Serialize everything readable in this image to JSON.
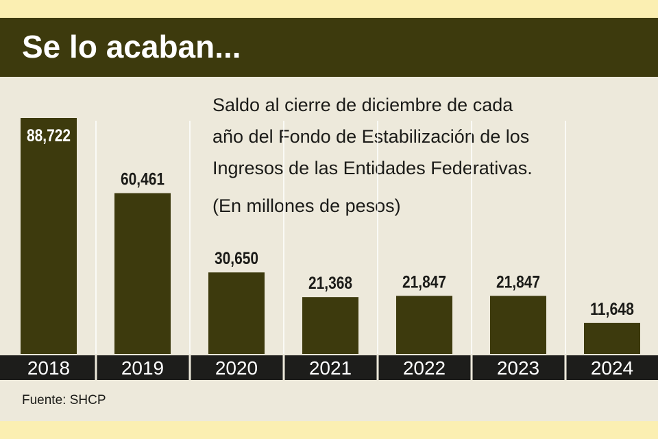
{
  "title": "Se lo acaban...",
  "subtitle_lines": [
    "Saldo al cierre de diciembre de cada",
    "año del Fondo de Estabilización de los",
    "Ingresos de las Entidades Federativas."
  ],
  "units": "(En millones de pesos)",
  "source": "Fuente: SHCP",
  "colors": {
    "bar": "#3d3a0d",
    "year_bar": "#1d1d1b",
    "background": "#ede9db",
    "outer": "#fbefb2"
  },
  "chart_data": {
    "type": "bar",
    "categories": [
      "2018",
      "2019",
      "2020",
      "2021",
      "2022",
      "2023",
      "2024"
    ],
    "values": [
      88722,
      60461,
      30650,
      21368,
      21847,
      21847,
      11648
    ],
    "value_labels": [
      "88,722",
      "60,461",
      "30,650",
      "21,368",
      "21,847",
      "21,847",
      "11,648"
    ],
    "title": "Se lo acaban...",
    "ylim": [
      0,
      88722
    ],
    "grid": false,
    "legend": "none"
  }
}
